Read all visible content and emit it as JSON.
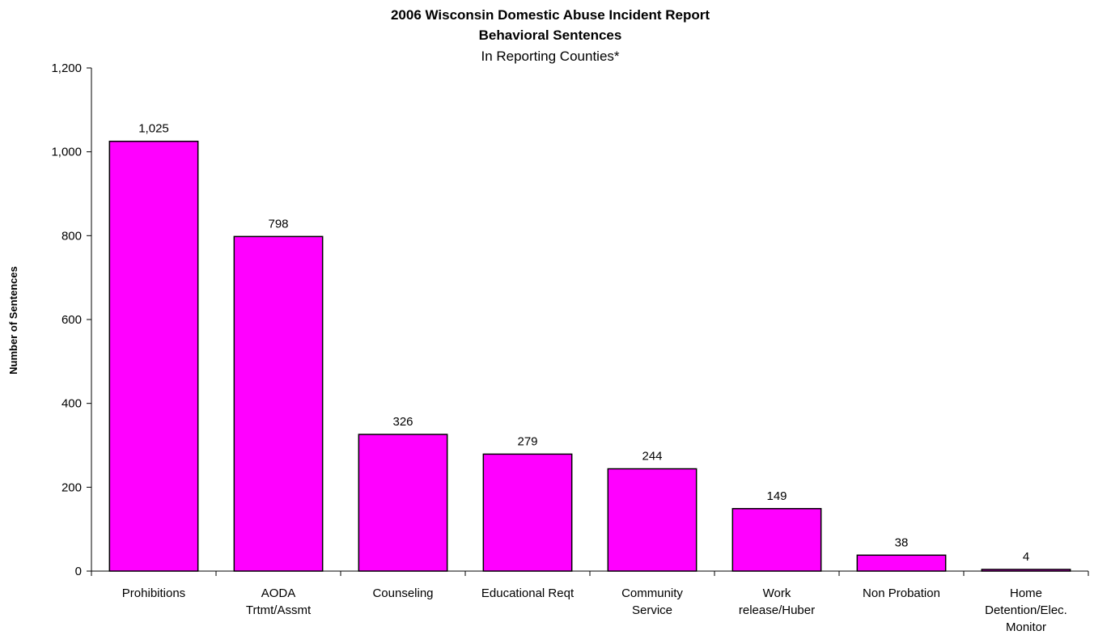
{
  "chart_data": {
    "type": "bar",
    "title": "2006 Wisconsin Domestic Abuse Incident Report",
    "subtitle": "Behavioral Sentences",
    "subtitle2": "In Reporting Counties*",
    "ylabel": "Number of Sentences",
    "xlabel": "",
    "ylim": [
      0,
      1200
    ],
    "yticks": [
      0,
      200,
      400,
      600,
      800,
      1000,
      1200
    ],
    "ytick_labels": [
      "0",
      "200",
      "400",
      "600",
      "800",
      "1,000",
      "1,200"
    ],
    "categories": [
      "Prohibitions",
      "AODA Trtmt/Assmt",
      "Counseling",
      "Educational Reqt",
      "Community Service",
      "Work release/Huber",
      "Non Probation",
      "Home Detention/Elec. Monitor"
    ],
    "category_lines": [
      [
        "Prohibitions"
      ],
      [
        "AODA",
        "Trtmt/Assmt"
      ],
      [
        "Counseling"
      ],
      [
        "Educational Reqt"
      ],
      [
        "Community",
        "Service"
      ],
      [
        "Work",
        "release/Huber"
      ],
      [
        "Non Probation"
      ],
      [
        "Home",
        "Detention/Elec.",
        "Monitor"
      ]
    ],
    "values": [
      1025,
      798,
      326,
      279,
      244,
      149,
      38,
      4
    ],
    "value_labels": [
      "1,025",
      "798",
      "326",
      "279",
      "244",
      "149",
      "38",
      "4"
    ],
    "bar_color": "#ff00ff",
    "grid": false,
    "legend": "none"
  }
}
